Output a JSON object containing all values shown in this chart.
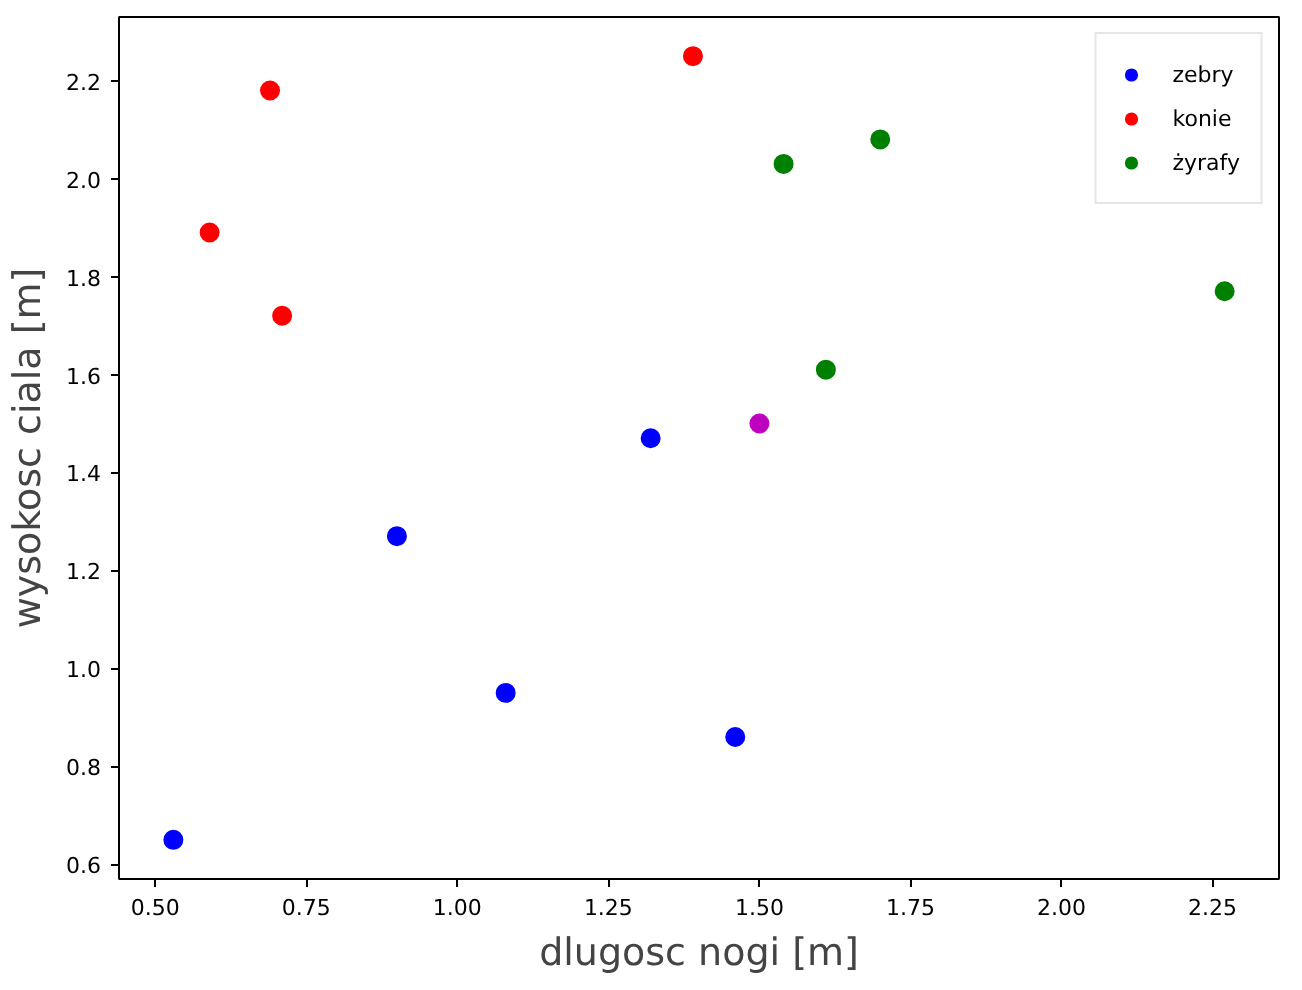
{
  "chart_data": {
    "type": "scatter",
    "xlabel": "dlugosc nogi [m]",
    "ylabel": "wysokosc ciala [m]",
    "marker": "circle",
    "legend": "top right",
    "grid": false,
    "xlim": [
      0.44,
      2.36
    ],
    "ylim": [
      0.57,
      2.33
    ],
    "xticks": [
      {
        "value": 0.5,
        "label": "0.50"
      },
      {
        "value": 0.75,
        "label": "0.75"
      },
      {
        "value": 1.0,
        "label": "1.00"
      },
      {
        "value": 1.25,
        "label": "1.25"
      },
      {
        "value": 1.5,
        "label": "1.50"
      },
      {
        "value": 1.75,
        "label": "1.75"
      },
      {
        "value": 2.0,
        "label": "2.00"
      },
      {
        "value": 2.25,
        "label": "2.25"
      }
    ],
    "yticks": [
      0.6,
      0.8,
      {
        "value": 1.0,
        "label": "1.0"
      },
      1.2,
      1.4,
      1.6,
      1.8,
      {
        "value": 2.0,
        "label": "2.0"
      },
      2.2
    ],
    "series": [
      {
        "name": "zebry",
        "color": "#0000ff",
        "x": [
          0.53,
          0.9,
          1.08,
          1.32,
          1.46
        ],
        "values": [
          0.65,
          1.27,
          0.95,
          1.47,
          0.86
        ]
      },
      {
        "name": "konie",
        "color": "#ff0000",
        "x": [
          0.59,
          0.69,
          0.71,
          1.39
        ],
        "values": [
          1.89,
          2.18,
          1.72,
          2.25
        ]
      },
      {
        "name": "żyrafy",
        "color": "#008000",
        "x": [
          1.54,
          1.7,
          1.61,
          2.27
        ],
        "values": [
          2.03,
          2.08,
          1.61,
          1.77
        ]
      },
      {
        "color": "#bf00bf",
        "x": [
          1.5
        ],
        "values": [
          1.5
        ]
      }
    ]
  }
}
